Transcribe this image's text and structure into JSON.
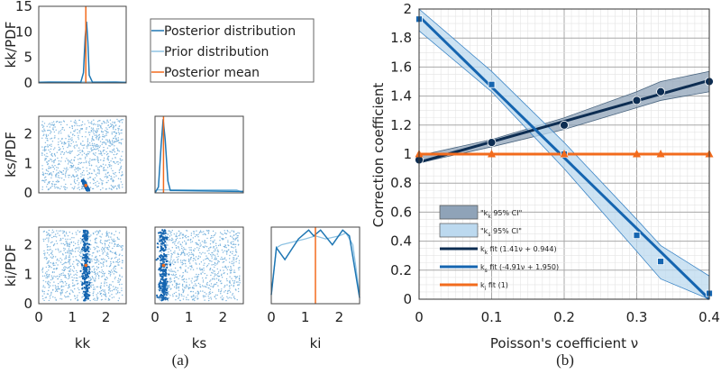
{
  "chart_data": [
    {
      "type": "scatter",
      "panel": "(a)",
      "caption": "(a)",
      "colors": {
        "posterior": "#1f77b4",
        "prior": "#8fc3e3",
        "mean": "#f26b1d",
        "scatter": "#2a7fc1"
      },
      "legend": [
        "Posterior distribution",
        "Prior distribution",
        "Posterior mean"
      ],
      "variables": [
        "kk",
        "ks",
        "ki"
      ],
      "ylabels": [
        "kk/PDF",
        "ks/PDF",
        "ki/PDF"
      ],
      "xticks": [
        "0",
        "1",
        "2"
      ],
      "yticks_pdf_kk": [
        "0",
        "5",
        "10",
        "15"
      ],
      "yticks": [
        "0",
        "1",
        "2"
      ],
      "xlim": [
        0,
        2.6
      ],
      "posterior_mean": {
        "kk": 1.4,
        "ks": 0.25,
        "ki": 1.3
      },
      "pdf_kk": {
        "posterior": {
          "x": [
            0,
            1.25,
            1.33,
            1.38,
            1.42,
            1.46,
            1.5,
            1.6,
            2.6
          ],
          "y": [
            0.1,
            0.1,
            2,
            9,
            12,
            8,
            1.5,
            0.1,
            0.1
          ]
        },
        "prior": {
          "x": [
            0,
            0.3,
            1.3,
            2.3,
            2.6
          ],
          "y": [
            0.15,
            0.25,
            0.2,
            0.25,
            0.1
          ]
        },
        "ylim": [
          0,
          15
        ]
      },
      "pdf_ks": {
        "posterior": {
          "x": [
            0,
            0.1,
            0.18,
            0.24,
            0.3,
            0.38,
            0.45,
            0.6,
            2.6
          ],
          "y": [
            0,
            0.2,
            1.6,
            2.5,
            1.8,
            0.4,
            0.08,
            0.08,
            0.05
          ]
        },
        "prior": {
          "x": [
            0,
            0.05,
            0.4,
            1.5,
            2.4,
            2.6
          ],
          "y": [
            0,
            0.1,
            0.1,
            0.1,
            0.1,
            0
          ]
        },
        "ylim": [
          0,
          2.6
        ]
      },
      "pdf_ki": {
        "posterior": {
          "x": [
            0,
            0.15,
            0.4,
            0.8,
            1.1,
            1.25,
            1.45,
            1.8,
            2.1,
            2.3,
            2.6
          ],
          "y": [
            0.3,
            1.9,
            1.5,
            2.2,
            2.5,
            2.3,
            2.5,
            2.0,
            2.5,
            2.3,
            0.2
          ]
        },
        "prior": {
          "x": [
            0,
            0.15,
            0.3,
            1.0,
            1.3,
            1.6,
            2.0,
            2.2,
            2.4,
            2.6
          ],
          "y": [
            0.3,
            1.9,
            2.0,
            2.2,
            2.3,
            2.2,
            2.3,
            2.4,
            2.0,
            0.3
          ]
        },
        "ylim": [
          0,
          2.6
        ]
      },
      "samples": {
        "count_uniform": 900,
        "count_posterior": 220,
        "posterior_spread_kk": 0.05,
        "posterior_spread_ks": 0.07
      }
    },
    {
      "type": "line",
      "panel": "(b)",
      "caption": "(b)",
      "xlabel": "Poisson's coefficient ν",
      "ylabel": "Correction coefficient",
      "xlim": [
        0,
        0.4
      ],
      "ylim": [
        0,
        2
      ],
      "xticks": [
        "0",
        "0.1",
        "0.2",
        "0.3",
        "0.4"
      ],
      "yticks": [
        "0",
        "0.2",
        "0.4",
        "0.6",
        "0.8",
        "1",
        "1.2",
        "1.4",
        "1.6",
        "1.8",
        "2"
      ],
      "grid": true,
      "legend_placement": "bottom-left",
      "x": [
        0,
        0.1,
        0.2,
        0.3,
        0.333,
        0.4
      ],
      "series": [
        {
          "name": "kk",
          "color": "#0d2d52",
          "marker": "circle",
          "values": [
            0.96,
            1.08,
            1.2,
            1.37,
            1.43,
            1.5
          ],
          "fit": {
            "slope": 1.41,
            "intercept": 0.944
          },
          "ci_lower": [
            0.94,
            1.05,
            1.17,
            1.32,
            1.37,
            1.43
          ],
          "ci_upper": [
            0.99,
            1.1,
            1.25,
            1.43,
            1.5,
            1.57
          ]
        },
        {
          "name": "ks",
          "color": "#1565b0",
          "marker": "square",
          "values": [
            1.93,
            1.48,
            1.0,
            0.44,
            0.26,
            0.04
          ],
          "fit": {
            "slope": -4.91,
            "intercept": 1.95
          },
          "ci_lower": [
            1.85,
            1.43,
            0.9,
            0.33,
            0.14,
            0.0
          ],
          "ci_upper": [
            2.0,
            1.57,
            1.08,
            0.55,
            0.37,
            0.16
          ]
        },
        {
          "name": "ki",
          "color": "#f26b1d",
          "marker": "triangle",
          "values": [
            1,
            1,
            1,
            1,
            1,
            1
          ],
          "fit": {
            "slope": 0,
            "intercept": 1
          }
        }
      ],
      "legend": [
        {
          "pre": "\"k",
          "sub": "k",
          "post": " 95% CI\"",
          "kind": "patch",
          "color": "#8fa3b8"
        },
        {
          "pre": "\"k",
          "sub": "s",
          "post": " 95% CI\"",
          "kind": "patch",
          "color": "#bcd9ef"
        },
        {
          "pre": "k",
          "sub": "k",
          "post": " fit (1.41ν + 0.944)",
          "kind": "line",
          "color": "#0d2d52"
        },
        {
          "pre": "k",
          "sub": "s",
          "post": " fit (-4.91ν + 1.950)",
          "kind": "line",
          "color": "#1565b0"
        },
        {
          "pre": "k",
          "sub": "i",
          "post": " fit (1)",
          "kind": "line",
          "color": "#f26b1d"
        }
      ]
    }
  ]
}
